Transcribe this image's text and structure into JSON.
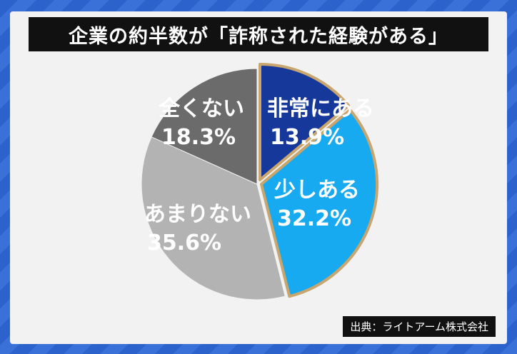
{
  "title": "企業の約半数が「詐称された経験がある」",
  "source": "出典：ライトアーム株式会社",
  "chart_data": {
    "type": "pie",
    "start_angle_deg": 0,
    "direction": "clockwise",
    "slices": [
      {
        "label": "非常にある",
        "value": 13.9,
        "value_text": "13.9%",
        "color": "#16389a",
        "label_color": "#ffffff"
      },
      {
        "label": "少しある",
        "value": 32.2,
        "value_text": "32.2%",
        "color": "#18aaf0",
        "label_color": "#ffffff"
      },
      {
        "label": "あまりない",
        "value": 35.6,
        "value_text": "35.6%",
        "color": "#b3b3b3",
        "label_color": "#ffffff"
      },
      {
        "label": "全くない",
        "value": 18.3,
        "value_text": "18.3%",
        "color": "#6b6b6b",
        "label_color": "#ffffff"
      }
    ],
    "highlight_border_color": "#c8a66e"
  }
}
